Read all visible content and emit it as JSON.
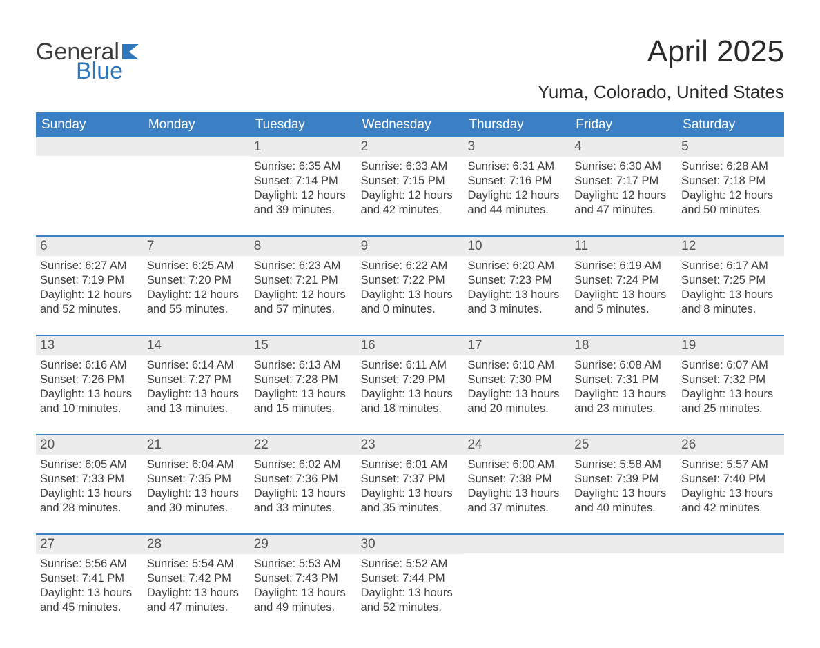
{
  "logo": {
    "general": "General",
    "blue": "Blue"
  },
  "title": "April 2025",
  "location": "Yuma, Colorado, United States",
  "colors": {
    "header_bg": "#3b7fc4",
    "daynum_bg": "#ececec",
    "week_border": "#3b7fc4",
    "text": "#333333",
    "logo_blue": "#2e77bb"
  },
  "weekdays": [
    "Sunday",
    "Monday",
    "Tuesday",
    "Wednesday",
    "Thursday",
    "Friday",
    "Saturday"
  ],
  "weeks": [
    [
      {
        "n": "",
        "sr": "",
        "ss": "",
        "d1": "",
        "d2": ""
      },
      {
        "n": "",
        "sr": "",
        "ss": "",
        "d1": "",
        "d2": ""
      },
      {
        "n": "1",
        "sr": "Sunrise: 6:35 AM",
        "ss": "Sunset: 7:14 PM",
        "d1": "Daylight: 12 hours",
        "d2": "and 39 minutes."
      },
      {
        "n": "2",
        "sr": "Sunrise: 6:33 AM",
        "ss": "Sunset: 7:15 PM",
        "d1": "Daylight: 12 hours",
        "d2": "and 42 minutes."
      },
      {
        "n": "3",
        "sr": "Sunrise: 6:31 AM",
        "ss": "Sunset: 7:16 PM",
        "d1": "Daylight: 12 hours",
        "d2": "and 44 minutes."
      },
      {
        "n": "4",
        "sr": "Sunrise: 6:30 AM",
        "ss": "Sunset: 7:17 PM",
        "d1": "Daylight: 12 hours",
        "d2": "and 47 minutes."
      },
      {
        "n": "5",
        "sr": "Sunrise: 6:28 AM",
        "ss": "Sunset: 7:18 PM",
        "d1": "Daylight: 12 hours",
        "d2": "and 50 minutes."
      }
    ],
    [
      {
        "n": "6",
        "sr": "Sunrise: 6:27 AM",
        "ss": "Sunset: 7:19 PM",
        "d1": "Daylight: 12 hours",
        "d2": "and 52 minutes."
      },
      {
        "n": "7",
        "sr": "Sunrise: 6:25 AM",
        "ss": "Sunset: 7:20 PM",
        "d1": "Daylight: 12 hours",
        "d2": "and 55 minutes."
      },
      {
        "n": "8",
        "sr": "Sunrise: 6:23 AM",
        "ss": "Sunset: 7:21 PM",
        "d1": "Daylight: 12 hours",
        "d2": "and 57 minutes."
      },
      {
        "n": "9",
        "sr": "Sunrise: 6:22 AM",
        "ss": "Sunset: 7:22 PM",
        "d1": "Daylight: 13 hours",
        "d2": "and 0 minutes."
      },
      {
        "n": "10",
        "sr": "Sunrise: 6:20 AM",
        "ss": "Sunset: 7:23 PM",
        "d1": "Daylight: 13 hours",
        "d2": "and 3 minutes."
      },
      {
        "n": "11",
        "sr": "Sunrise: 6:19 AM",
        "ss": "Sunset: 7:24 PM",
        "d1": "Daylight: 13 hours",
        "d2": "and 5 minutes."
      },
      {
        "n": "12",
        "sr": "Sunrise: 6:17 AM",
        "ss": "Sunset: 7:25 PM",
        "d1": "Daylight: 13 hours",
        "d2": "and 8 minutes."
      }
    ],
    [
      {
        "n": "13",
        "sr": "Sunrise: 6:16 AM",
        "ss": "Sunset: 7:26 PM",
        "d1": "Daylight: 13 hours",
        "d2": "and 10 minutes."
      },
      {
        "n": "14",
        "sr": "Sunrise: 6:14 AM",
        "ss": "Sunset: 7:27 PM",
        "d1": "Daylight: 13 hours",
        "d2": "and 13 minutes."
      },
      {
        "n": "15",
        "sr": "Sunrise: 6:13 AM",
        "ss": "Sunset: 7:28 PM",
        "d1": "Daylight: 13 hours",
        "d2": "and 15 minutes."
      },
      {
        "n": "16",
        "sr": "Sunrise: 6:11 AM",
        "ss": "Sunset: 7:29 PM",
        "d1": "Daylight: 13 hours",
        "d2": "and 18 minutes."
      },
      {
        "n": "17",
        "sr": "Sunrise: 6:10 AM",
        "ss": "Sunset: 7:30 PM",
        "d1": "Daylight: 13 hours",
        "d2": "and 20 minutes."
      },
      {
        "n": "18",
        "sr": "Sunrise: 6:08 AM",
        "ss": "Sunset: 7:31 PM",
        "d1": "Daylight: 13 hours",
        "d2": "and 23 minutes."
      },
      {
        "n": "19",
        "sr": "Sunrise: 6:07 AM",
        "ss": "Sunset: 7:32 PM",
        "d1": "Daylight: 13 hours",
        "d2": "and 25 minutes."
      }
    ],
    [
      {
        "n": "20",
        "sr": "Sunrise: 6:05 AM",
        "ss": "Sunset: 7:33 PM",
        "d1": "Daylight: 13 hours",
        "d2": "and 28 minutes."
      },
      {
        "n": "21",
        "sr": "Sunrise: 6:04 AM",
        "ss": "Sunset: 7:35 PM",
        "d1": "Daylight: 13 hours",
        "d2": "and 30 minutes."
      },
      {
        "n": "22",
        "sr": "Sunrise: 6:02 AM",
        "ss": "Sunset: 7:36 PM",
        "d1": "Daylight: 13 hours",
        "d2": "and 33 minutes."
      },
      {
        "n": "23",
        "sr": "Sunrise: 6:01 AM",
        "ss": "Sunset: 7:37 PM",
        "d1": "Daylight: 13 hours",
        "d2": "and 35 minutes."
      },
      {
        "n": "24",
        "sr": "Sunrise: 6:00 AM",
        "ss": "Sunset: 7:38 PM",
        "d1": "Daylight: 13 hours",
        "d2": "and 37 minutes."
      },
      {
        "n": "25",
        "sr": "Sunrise: 5:58 AM",
        "ss": "Sunset: 7:39 PM",
        "d1": "Daylight: 13 hours",
        "d2": "and 40 minutes."
      },
      {
        "n": "26",
        "sr": "Sunrise: 5:57 AM",
        "ss": "Sunset: 7:40 PM",
        "d1": "Daylight: 13 hours",
        "d2": "and 42 minutes."
      }
    ],
    [
      {
        "n": "27",
        "sr": "Sunrise: 5:56 AM",
        "ss": "Sunset: 7:41 PM",
        "d1": "Daylight: 13 hours",
        "d2": "and 45 minutes."
      },
      {
        "n": "28",
        "sr": "Sunrise: 5:54 AM",
        "ss": "Sunset: 7:42 PM",
        "d1": "Daylight: 13 hours",
        "d2": "and 47 minutes."
      },
      {
        "n": "29",
        "sr": "Sunrise: 5:53 AM",
        "ss": "Sunset: 7:43 PM",
        "d1": "Daylight: 13 hours",
        "d2": "and 49 minutes."
      },
      {
        "n": "30",
        "sr": "Sunrise: 5:52 AM",
        "ss": "Sunset: 7:44 PM",
        "d1": "Daylight: 13 hours",
        "d2": "and 52 minutes."
      },
      {
        "n": "",
        "sr": "",
        "ss": "",
        "d1": "",
        "d2": ""
      },
      {
        "n": "",
        "sr": "",
        "ss": "",
        "d1": "",
        "d2": ""
      },
      {
        "n": "",
        "sr": "",
        "ss": "",
        "d1": "",
        "d2": ""
      }
    ]
  ]
}
